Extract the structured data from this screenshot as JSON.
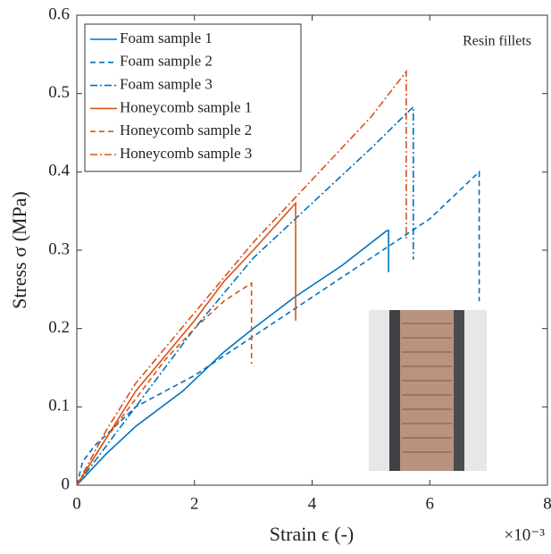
{
  "chart_data": {
    "type": "line",
    "xlabel": "Strain ϵ (-)",
    "ylabel": "Stress σ (MPa)",
    "x_multiplier": "×10⁻³",
    "annotation": "Resin fillets",
    "xlim": [
      0,
      8
    ],
    "xticks": [
      0,
      2,
      4,
      6,
      8
    ],
    "ylim": [
      0,
      0.6
    ],
    "yticks": [
      0,
      0.1,
      0.2,
      0.3,
      0.4,
      0.5,
      0.6
    ],
    "legend": "upper left",
    "series": [
      {
        "name": "Foam sample 1",
        "color": "#0072bd",
        "dash": "solid",
        "x": [
          0,
          0.5,
          1,
          1.8,
          2.5,
          3,
          3.7,
          4.5,
          5.27,
          5.3,
          5.3
        ],
        "values": [
          0,
          0.04,
          0.075,
          0.12,
          0.17,
          0.2,
          0.24,
          0.28,
          0.325,
          0.325,
          0.272
        ]
      },
      {
        "name": "Foam sample 2",
        "color": "#0072bd",
        "dash": "dashed",
        "x": [
          0,
          0.1,
          0.3,
          1,
          1.5,
          2,
          3,
          4,
          5,
          6,
          6.84,
          6.84
        ],
        "values": [
          0,
          0.03,
          0.05,
          0.1,
          0.12,
          0.14,
          0.19,
          0.24,
          0.29,
          0.34,
          0.4,
          0.235
        ]
      },
      {
        "name": "Foam sample 3",
        "color": "#0072bd",
        "dash": "dashdot",
        "x": [
          0,
          0.3,
          0.8,
          1.5,
          2,
          3,
          4,
          5,
          5.72,
          5.72
        ],
        "values": [
          0,
          0.03,
          0.08,
          0.15,
          0.2,
          0.29,
          0.36,
          0.43,
          0.483,
          0.288
        ]
      },
      {
        "name": "Honeycomb sample 1",
        "color": "#d95319",
        "dash": "solid",
        "x": [
          0,
          0.5,
          1,
          2,
          2.5,
          3,
          3.72,
          3.72
        ],
        "values": [
          0,
          0.06,
          0.12,
          0.21,
          0.26,
          0.3,
          0.36,
          0.21
        ]
      },
      {
        "name": "Honeycomb sample 2",
        "color": "#d95319",
        "dash": "dashed",
        "x": [
          0,
          0.5,
          1,
          1.5,
          2,
          2.5,
          2.97,
          2.97
        ],
        "values": [
          0,
          0.06,
          0.11,
          0.16,
          0.2,
          0.235,
          0.258,
          0.155
        ]
      },
      {
        "name": "Honeycomb sample 3",
        "color": "#d95319",
        "dash": "dashdot",
        "x": [
          0,
          0.5,
          1,
          2,
          3,
          4,
          5,
          5.6,
          5.6
        ],
        "values": [
          0,
          0.07,
          0.13,
          0.22,
          0.31,
          0.39,
          0.47,
          0.528,
          0.315
        ]
      }
    ]
  }
}
